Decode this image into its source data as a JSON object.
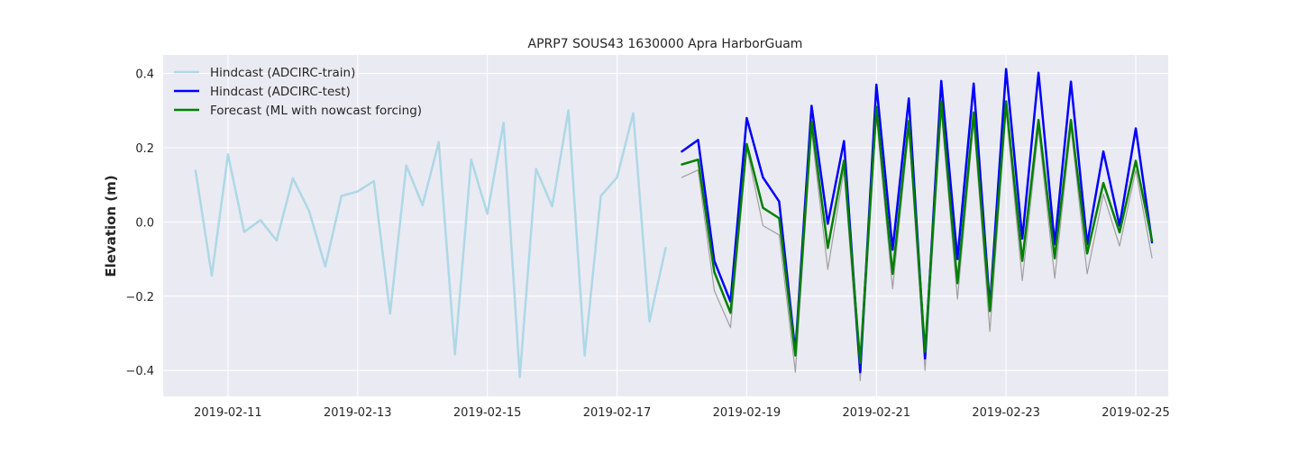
{
  "chart_data": {
    "type": "line",
    "title": "APRP7 SOUS43 1630000 Apra HarborGuam",
    "xlabel": "",
    "ylabel": "Elevation (m)",
    "x_axis": "date",
    "xlim": [
      "2019-02-10T00:00",
      "2019-02-25T12:00"
    ],
    "ylim": [
      -0.47,
      0.45
    ],
    "x_ticks": [
      "2019-02-11",
      "2019-02-13",
      "2019-02-15",
      "2019-02-17",
      "2019-02-19",
      "2019-02-21",
      "2019-02-23",
      "2019-02-25"
    ],
    "y_ticks": [
      -0.4,
      -0.2,
      0.0,
      0.2,
      0.4
    ],
    "y_tick_labels": [
      "−0.4",
      "−0.2",
      "0.0",
      "0.2",
      "0.4"
    ],
    "grid": true,
    "background": "#eaeaf2",
    "legend_position": "top-left",
    "series": [
      {
        "name": "Hindcast (ADCIRC-train)",
        "color": "#add8e6",
        "in_legend": true,
        "x": [
          "2019-02-10T12:00",
          "2019-02-10T18:00",
          "2019-02-11T00:00",
          "2019-02-11T06:00",
          "2019-02-11T12:00",
          "2019-02-11T18:00",
          "2019-02-12T00:00",
          "2019-02-12T06:00",
          "2019-02-12T12:00",
          "2019-02-12T18:00",
          "2019-02-13T00:00",
          "2019-02-13T06:00",
          "2019-02-13T12:00",
          "2019-02-13T18:00",
          "2019-02-14T00:00",
          "2019-02-14T06:00",
          "2019-02-14T12:00",
          "2019-02-14T18:00",
          "2019-02-15T00:00",
          "2019-02-15T06:00",
          "2019-02-15T12:00",
          "2019-02-15T18:00",
          "2019-02-16T00:00",
          "2019-02-16T06:00",
          "2019-02-16T12:00",
          "2019-02-16T18:00",
          "2019-02-17T00:00",
          "2019-02-17T06:00",
          "2019-02-17T12:00",
          "2019-02-17T18:00"
        ],
        "values": [
          0.138,
          -0.145,
          0.182,
          -0.027,
          0.005,
          -0.05,
          0.118,
          0.03,
          -0.12,
          0.07,
          0.082,
          0.11,
          -0.247,
          0.152,
          0.045,
          0.215,
          -0.357,
          0.168,
          0.022,
          0.267,
          -0.418,
          0.143,
          0.042,
          0.301,
          -0.36,
          0.07,
          0.12,
          0.293,
          -0.268,
          -0.07
        ]
      },
      {
        "name": "Hindcast (ADCIRC-test)",
        "color": "#0000ff",
        "in_legend": true,
        "x": [
          "2019-02-18T00:00",
          "2019-02-18T06:00",
          "2019-02-18T12:00",
          "2019-02-18T18:00",
          "2019-02-19T00:00",
          "2019-02-19T06:00",
          "2019-02-19T12:00",
          "2019-02-19T18:00",
          "2019-02-20T00:00",
          "2019-02-20T06:00",
          "2019-02-20T12:00",
          "2019-02-20T18:00",
          "2019-02-21T00:00",
          "2019-02-21T06:00",
          "2019-02-21T12:00",
          "2019-02-21T18:00",
          "2019-02-22T00:00",
          "2019-02-22T06:00",
          "2019-02-22T12:00",
          "2019-02-22T18:00",
          "2019-02-23T00:00",
          "2019-02-23T06:00",
          "2019-02-23T12:00",
          "2019-02-23T18:00",
          "2019-02-24T00:00",
          "2019-02-24T06:00",
          "2019-02-24T12:00",
          "2019-02-24T18:00",
          "2019-02-25T00:00",
          "2019-02-25T06:00"
        ],
        "values": [
          0.19,
          0.221,
          -0.105,
          -0.215,
          0.28,
          0.12,
          0.055,
          -0.35,
          0.313,
          -0.005,
          0.218,
          -0.405,
          0.37,
          -0.075,
          0.333,
          -0.368,
          0.38,
          -0.1,
          0.373,
          -0.23,
          0.412,
          -0.045,
          0.402,
          -0.06,
          0.378,
          -0.06,
          0.19,
          -0.01,
          0.252,
          -0.055
        ]
      },
      {
        "name": "Forecast (ML with nowcast forcing)",
        "color": "#008000",
        "in_legend": true,
        "x": [
          "2019-02-18T00:00",
          "2019-02-18T06:00",
          "2019-02-18T12:00",
          "2019-02-18T18:00",
          "2019-02-19T00:00",
          "2019-02-19T06:00",
          "2019-02-19T12:00",
          "2019-02-19T18:00",
          "2019-02-20T00:00",
          "2019-02-20T06:00",
          "2019-02-20T12:00",
          "2019-02-20T18:00",
          "2019-02-21T00:00",
          "2019-02-21T06:00",
          "2019-02-21T12:00",
          "2019-02-21T18:00",
          "2019-02-22T00:00",
          "2019-02-22T06:00",
          "2019-02-22T12:00",
          "2019-02-22T18:00",
          "2019-02-23T00:00",
          "2019-02-23T06:00",
          "2019-02-23T12:00",
          "2019-02-23T18:00",
          "2019-02-24T00:00",
          "2019-02-24T06:00",
          "2019-02-24T12:00",
          "2019-02-24T18:00",
          "2019-02-25T00:00",
          "2019-02-25T06:00"
        ],
        "values": [
          0.155,
          0.168,
          -0.135,
          -0.245,
          0.21,
          0.038,
          0.01,
          -0.36,
          0.27,
          -0.07,
          0.165,
          -0.38,
          0.31,
          -0.14,
          0.272,
          -0.35,
          0.325,
          -0.165,
          0.295,
          -0.24,
          0.325,
          -0.105,
          0.275,
          -0.098,
          0.275,
          -0.085,
          0.105,
          -0.028,
          0.165,
          -0.05
        ]
      },
      {
        "name": "",
        "color": "#a0a0a0",
        "in_legend": false,
        "x": [
          "2019-02-18T00:00",
          "2019-02-18T06:00",
          "2019-02-18T12:00",
          "2019-02-18T18:00",
          "2019-02-19T00:00",
          "2019-02-19T06:00",
          "2019-02-19T12:00",
          "2019-02-19T18:00",
          "2019-02-20T00:00",
          "2019-02-20T06:00",
          "2019-02-20T12:00",
          "2019-02-20T18:00",
          "2019-02-21T00:00",
          "2019-02-21T06:00",
          "2019-02-21T12:00",
          "2019-02-21T18:00",
          "2019-02-22T00:00",
          "2019-02-22T06:00",
          "2019-02-22T12:00",
          "2019-02-22T18:00",
          "2019-02-23T00:00",
          "2019-02-23T06:00",
          "2019-02-23T12:00",
          "2019-02-23T18:00",
          "2019-02-24T00:00",
          "2019-02-24T06:00",
          "2019-02-24T12:00",
          "2019-02-24T18:00",
          "2019-02-25T00:00",
          "2019-02-25T06:00"
        ],
        "values": [
          0.12,
          0.14,
          -0.185,
          -0.285,
          0.2,
          -0.01,
          -0.035,
          -0.405,
          0.245,
          -0.128,
          0.14,
          -0.428,
          0.285,
          -0.18,
          0.25,
          -0.4,
          0.3,
          -0.208,
          0.27,
          -0.295,
          0.3,
          -0.158,
          0.25,
          -0.152,
          0.255,
          -0.14,
          0.075,
          -0.065,
          0.14,
          -0.097
        ]
      }
    ]
  }
}
